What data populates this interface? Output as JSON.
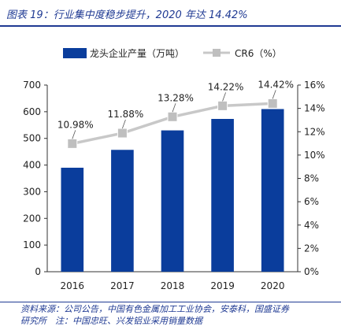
{
  "header": {
    "title": "图表 19：行业集中度稳步提升，2020 年达 14.42%"
  },
  "chart_data": {
    "type": "bar",
    "categories": [
      "2016",
      "2017",
      "2018",
      "2019",
      "2020"
    ],
    "series": [
      {
        "name": "龙头企业产量（万吨）",
        "type": "bar",
        "axis": "left",
        "values": [
          390,
          457,
          530,
          573,
          610
        ],
        "color": "#0a3d9c"
      },
      {
        "name": "CR6（%）",
        "type": "line",
        "axis": "right",
        "values": [
          10.98,
          11.88,
          13.28,
          14.22,
          14.42
        ],
        "data_labels": [
          "10.98%",
          "11.88%",
          "13.28%",
          "14.22%",
          "14.42%"
        ],
        "color": "#c8c8c8",
        "marker_color": "#bfbfbf"
      }
    ],
    "y_left": {
      "ylim": [
        0,
        700
      ],
      "ticks": [
        "0",
        "100",
        "200",
        "300",
        "400",
        "500",
        "600",
        "700"
      ]
    },
    "y_right": {
      "ylim": [
        0,
        16
      ],
      "ticks": [
        "0%",
        "2%",
        "4%",
        "6%",
        "8%",
        "10%",
        "12%",
        "14%",
        "16%"
      ]
    },
    "legend": {
      "position": "top"
    },
    "grid": false
  },
  "footnote": {
    "line1": "资料来源：公司公告，中国有色金属加工工业协会，安泰科，国盛证券",
    "line2": "研究所　注：中国忠旺、兴发铝业采用销量数据"
  }
}
